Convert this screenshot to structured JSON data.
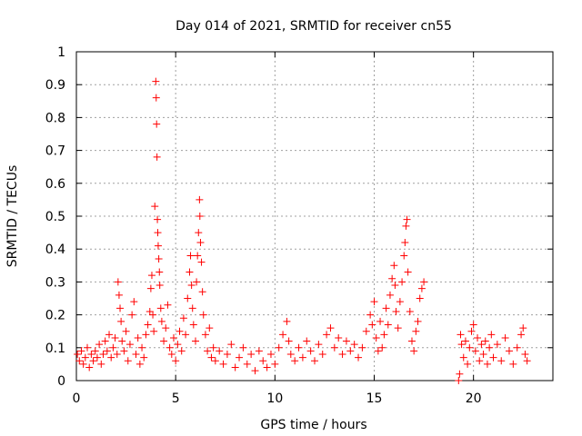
{
  "chart_data": {
    "type": "scatter",
    "title": "Day 014 of 2021, SRMTID for receiver cn55",
    "xlabel": "GPS time / hours",
    "ylabel": "SRMTID / TECUs",
    "xlim": [
      0,
      24
    ],
    "ylim": [
      0,
      1
    ],
    "xticks": [
      0,
      5,
      10,
      15,
      20
    ],
    "xtick_labels": [
      "0",
      "5",
      "10",
      "15",
      "20"
    ],
    "yticks": [
      0,
      0.1,
      0.2,
      0.3,
      0.4,
      0.5,
      0.6,
      0.7,
      0.8,
      0.9,
      1
    ],
    "ytick_labels": [
      "0",
      "0.1",
      "0.2",
      "0.3",
      "0.4",
      "0.5",
      "0.6",
      "0.7",
      "0.8",
      "0.9",
      "1"
    ],
    "grid": true,
    "marker": "+",
    "marker_color": "#ff0000",
    "series": [
      {
        "name": "SRMTID",
        "points": [
          [
            0.05,
            0.08
          ],
          [
            0.15,
            0.06
          ],
          [
            0.25,
            0.09
          ],
          [
            0.35,
            0.05
          ],
          [
            0.45,
            0.07
          ],
          [
            0.55,
            0.1
          ],
          [
            0.65,
            0.04
          ],
          [
            0.75,
            0.08
          ],
          [
            0.85,
            0.06
          ],
          [
            0.95,
            0.09
          ],
          [
            1.05,
            0.07
          ],
          [
            1.15,
            0.11
          ],
          [
            1.25,
            0.05
          ],
          [
            1.35,
            0.08
          ],
          [
            1.45,
            0.12
          ],
          [
            1.55,
            0.09
          ],
          [
            1.65,
            0.14
          ],
          [
            1.75,
            0.07
          ],
          [
            1.85,
            0.1
          ],
          [
            1.95,
            0.13
          ],
          [
            2.05,
            0.08
          ],
          [
            2.1,
            0.3
          ],
          [
            2.15,
            0.26
          ],
          [
            2.2,
            0.22
          ],
          [
            2.25,
            0.18
          ],
          [
            2.3,
            0.12
          ],
          [
            2.4,
            0.09
          ],
          [
            2.5,
            0.15
          ],
          [
            2.6,
            0.06
          ],
          [
            2.7,
            0.11
          ],
          [
            2.8,
            0.2
          ],
          [
            2.9,
            0.24
          ],
          [
            3.0,
            0.08
          ],
          [
            3.1,
            0.13
          ],
          [
            3.2,
            0.05
          ],
          [
            3.3,
            0.1
          ],
          [
            3.4,
            0.07
          ],
          [
            3.5,
            0.14
          ],
          [
            3.6,
            0.17
          ],
          [
            3.7,
            0.21
          ],
          [
            3.75,
            0.28
          ],
          [
            3.8,
            0.32
          ],
          [
            3.85,
            0.2
          ],
          [
            3.9,
            0.15
          ],
          [
            3.95,
            0.53
          ],
          [
            4.0,
            0.91
          ],
          [
            4.02,
            0.86
          ],
          [
            4.04,
            0.78
          ],
          [
            4.06,
            0.68
          ],
          [
            4.08,
            0.49
          ],
          [
            4.1,
            0.45
          ],
          [
            4.12,
            0.41
          ],
          [
            4.15,
            0.37
          ],
          [
            4.18,
            0.33
          ],
          [
            4.2,
            0.29
          ],
          [
            4.25,
            0.22
          ],
          [
            4.3,
            0.18
          ],
          [
            4.4,
            0.12
          ],
          [
            4.5,
            0.16
          ],
          [
            4.6,
            0.23
          ],
          [
            4.7,
            0.1
          ],
          [
            4.8,
            0.08
          ],
          [
            4.9,
            0.13
          ],
          [
            5.0,
            0.06
          ],
          [
            5.1,
            0.11
          ],
          [
            5.2,
            0.15
          ],
          [
            5.3,
            0.09
          ],
          [
            5.4,
            0.19
          ],
          [
            5.5,
            0.14
          ],
          [
            5.6,
            0.25
          ],
          [
            5.7,
            0.33
          ],
          [
            5.75,
            0.38
          ],
          [
            5.8,
            0.29
          ],
          [
            5.85,
            0.22
          ],
          [
            5.9,
            0.17
          ],
          [
            6.0,
            0.12
          ],
          [
            6.05,
            0.3
          ],
          [
            6.1,
            0.38
          ],
          [
            6.15,
            0.45
          ],
          [
            6.2,
            0.55
          ],
          [
            6.22,
            0.5
          ],
          [
            6.25,
            0.42
          ],
          [
            6.3,
            0.36
          ],
          [
            6.35,
            0.27
          ],
          [
            6.4,
            0.2
          ],
          [
            6.5,
            0.14
          ],
          [
            6.6,
            0.09
          ],
          [
            6.7,
            0.16
          ],
          [
            6.8,
            0.07
          ],
          [
            6.9,
            0.1
          ],
          [
            7.0,
            0.06
          ],
          [
            7.2,
            0.09
          ],
          [
            7.4,
            0.05
          ],
          [
            7.6,
            0.08
          ],
          [
            7.8,
            0.11
          ],
          [
            8.0,
            0.04
          ],
          [
            8.2,
            0.07
          ],
          [
            8.4,
            0.1
          ],
          [
            8.6,
            0.05
          ],
          [
            8.8,
            0.08
          ],
          [
            9.0,
            0.03
          ],
          [
            9.2,
            0.09
          ],
          [
            9.4,
            0.06
          ],
          [
            9.6,
            0.04
          ],
          [
            9.8,
            0.08
          ],
          [
            10.0,
            0.05
          ],
          [
            10.2,
            0.1
          ],
          [
            10.4,
            0.14
          ],
          [
            10.6,
            0.18
          ],
          [
            10.7,
            0.12
          ],
          [
            10.8,
            0.08
          ],
          [
            11.0,
            0.06
          ],
          [
            11.2,
            0.1
          ],
          [
            11.4,
            0.07
          ],
          [
            11.6,
            0.12
          ],
          [
            11.8,
            0.09
          ],
          [
            12.0,
            0.06
          ],
          [
            12.2,
            0.11
          ],
          [
            12.4,
            0.08
          ],
          [
            12.6,
            0.14
          ],
          [
            12.8,
            0.16
          ],
          [
            13.0,
            0.1
          ],
          [
            13.2,
            0.13
          ],
          [
            13.4,
            0.08
          ],
          [
            13.6,
            0.12
          ],
          [
            13.8,
            0.09
          ],
          [
            14.0,
            0.11
          ],
          [
            14.2,
            0.07
          ],
          [
            14.4,
            0.1
          ],
          [
            14.6,
            0.15
          ],
          [
            14.8,
            0.2
          ],
          [
            14.9,
            0.17
          ],
          [
            15.0,
            0.24
          ],
          [
            15.1,
            0.13
          ],
          [
            15.2,
            0.09
          ],
          [
            15.3,
            0.18
          ],
          [
            15.4,
            0.1
          ],
          [
            15.5,
            0.14
          ],
          [
            15.6,
            0.22
          ],
          [
            15.7,
            0.17
          ],
          [
            15.8,
            0.26
          ],
          [
            15.9,
            0.31
          ],
          [
            16.0,
            0.35
          ],
          [
            16.05,
            0.29
          ],
          [
            16.1,
            0.21
          ],
          [
            16.2,
            0.16
          ],
          [
            16.3,
            0.24
          ],
          [
            16.4,
            0.3
          ],
          [
            16.5,
            0.38
          ],
          [
            16.55,
            0.42
          ],
          [
            16.6,
            0.47
          ],
          [
            16.65,
            0.49
          ],
          [
            16.7,
            0.33
          ],
          [
            16.8,
            0.21
          ],
          [
            16.9,
            0.12
          ],
          [
            17.0,
            0.09
          ],
          [
            17.1,
            0.15
          ],
          [
            17.2,
            0.18
          ],
          [
            17.3,
            0.25
          ],
          [
            17.4,
            0.28
          ],
          [
            17.5,
            0.3
          ],
          [
            19.25,
            0.0
          ],
          [
            19.3,
            0.02
          ],
          [
            19.35,
            0.14
          ],
          [
            19.4,
            0.11
          ],
          [
            19.5,
            0.07
          ],
          [
            19.6,
            0.12
          ],
          [
            19.7,
            0.05
          ],
          [
            19.8,
            0.1
          ],
          [
            19.9,
            0.15
          ],
          [
            20.0,
            0.17
          ],
          [
            20.1,
            0.09
          ],
          [
            20.2,
            0.13
          ],
          [
            20.3,
            0.06
          ],
          [
            20.4,
            0.11
          ],
          [
            20.5,
            0.08
          ],
          [
            20.6,
            0.12
          ],
          [
            20.7,
            0.05
          ],
          [
            20.8,
            0.1
          ],
          [
            20.9,
            0.14
          ],
          [
            21.0,
            0.07
          ],
          [
            21.2,
            0.11
          ],
          [
            21.4,
            0.06
          ],
          [
            21.6,
            0.13
          ],
          [
            21.8,
            0.09
          ],
          [
            22.0,
            0.05
          ],
          [
            22.2,
            0.1
          ],
          [
            22.4,
            0.14
          ],
          [
            22.5,
            0.16
          ],
          [
            22.6,
            0.08
          ],
          [
            22.7,
            0.06
          ]
        ]
      }
    ]
  }
}
